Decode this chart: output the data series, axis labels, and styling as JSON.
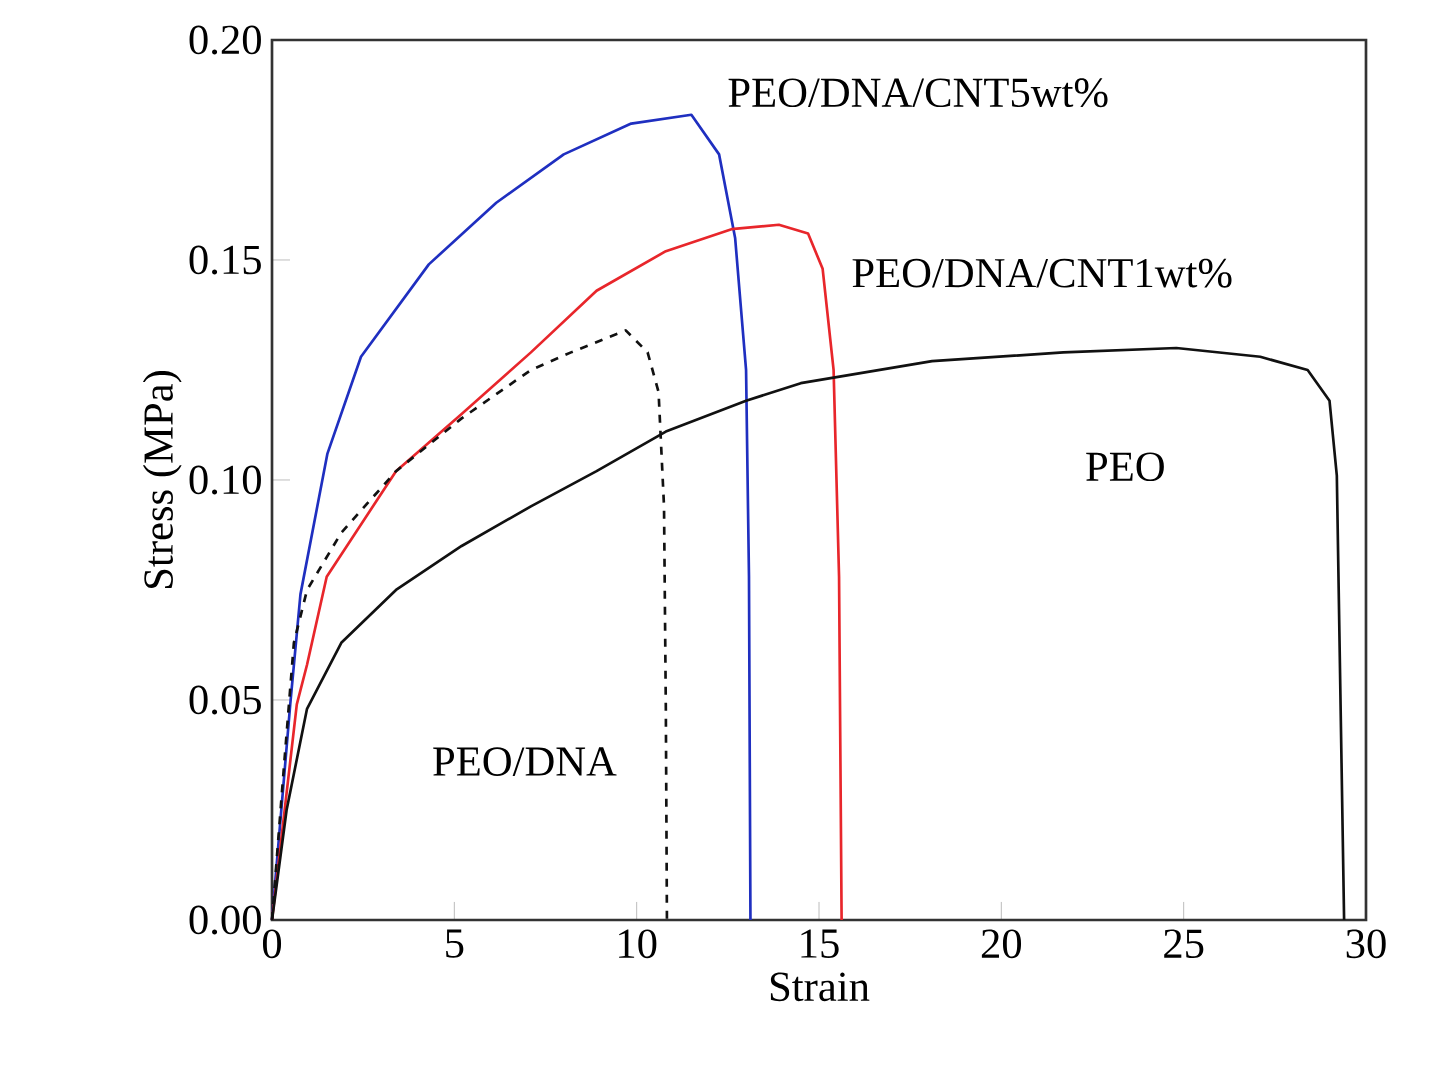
{
  "chart_data": {
    "type": "line",
    "xlabel": "Strain",
    "ylabel": "Stress (MPa)",
    "xlim": [
      0,
      30
    ],
    "ylim": [
      0,
      0.2
    ],
    "xticks": [
      0,
      5,
      10,
      15,
      20,
      25,
      30
    ],
    "yticks": [
      {
        "value": 0,
        "label": "0.00"
      },
      {
        "value": 0.05,
        "label": "0.05"
      },
      {
        "value": 0.1,
        "label": "0.10"
      },
      {
        "value": 0.15,
        "label": "0.15"
      },
      {
        "value": 0.2,
        "label": "0.20"
      }
    ],
    "marker": "none",
    "grid": false,
    "legend": false,
    "series": [
      {
        "name": "PEO/DNA/CNT5wt%",
        "color": "#1f2fc0",
        "line_style": "solid",
        "x": [
          0,
          0.5,
          0.78,
          1.52,
          2.44,
          4.3,
          6.15,
          8.0,
          9.85,
          11.5,
          12.26,
          12.7,
          13.0,
          13.08,
          13.12
        ],
        "values": [
          0,
          0.049,
          0.074,
          0.106,
          0.128,
          0.149,
          0.163,
          0.174,
          0.181,
          0.183,
          0.174,
          0.155,
          0.125,
          0.078,
          0
        ]
      },
      {
        "name": "PEO/DNA/CNT1wt%",
        "color": "#e8262b",
        "line_style": "solid",
        "x": [
          0,
          0.68,
          0.96,
          1.5,
          3.4,
          5.2,
          7.1,
          8.9,
          10.8,
          12.6,
          13.9,
          14.7,
          15.1,
          15.4,
          15.55,
          15.62
        ],
        "values": [
          0,
          0.049,
          0.058,
          0.078,
          0.102,
          0.115,
          0.129,
          0.143,
          0.152,
          0.157,
          0.158,
          0.156,
          0.148,
          0.125,
          0.078,
          0
        ]
      },
      {
        "name": "PEO",
        "color": "#111111",
        "line_style": "solid",
        "x": [
          0,
          0.4,
          0.96,
          1.9,
          3.4,
          5.2,
          7.1,
          8.9,
          10.8,
          13.0,
          14.5,
          18.1,
          21.7,
          24.8,
          27.1,
          28.4,
          29.0,
          29.2,
          29.4
        ],
        "values": [
          0,
          0.025,
          0.048,
          0.063,
          0.075,
          0.085,
          0.094,
          0.102,
          0.111,
          0.118,
          0.122,
          0.127,
          0.129,
          0.13,
          0.128,
          0.125,
          0.118,
          0.101,
          0
        ]
      },
      {
        "name": "PEO/DNA",
        "color": "#111111",
        "line_style": "dashed",
        "x": [
          0,
          0.3,
          0.6,
          0.96,
          1.9,
          3.4,
          5.2,
          7.1,
          8.2,
          9.7,
          10.3,
          10.6,
          10.75,
          10.8,
          10.83
        ],
        "values": [
          0,
          0.032,
          0.063,
          0.075,
          0.088,
          0.102,
          0.114,
          0.125,
          0.129,
          0.134,
          0.129,
          0.12,
          0.094,
          0.048,
          0
        ]
      }
    ]
  }
}
